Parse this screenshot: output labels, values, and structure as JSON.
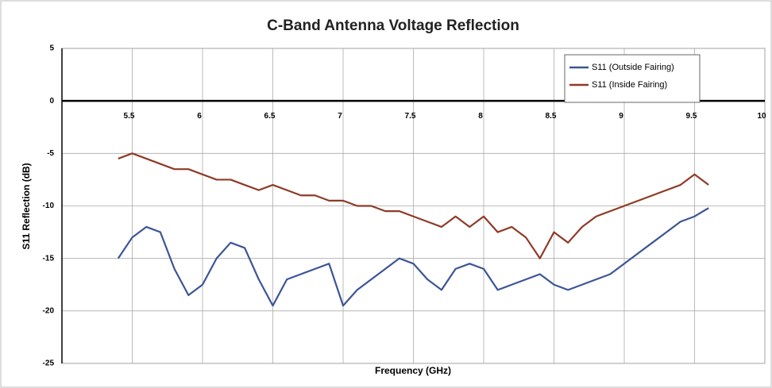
{
  "chart_data": {
    "type": "line",
    "title": "C-Band Antenna Voltage Reflection",
    "x_label": "Frequency (GHz)",
    "y_label": "S11 Reflection (dB)",
    "x": [
      5.4,
      5.5,
      5.6,
      5.7,
      5.8,
      5.9,
      6.0,
      6.1,
      6.2,
      6.3,
      6.4,
      6.5,
      6.6,
      6.7,
      6.8,
      6.9,
      7.0,
      7.1,
      7.2,
      7.3,
      7.4,
      7.5,
      7.6,
      7.7,
      7.8,
      7.9,
      8.0,
      8.1,
      8.2,
      8.3,
      8.4,
      8.5,
      8.6,
      8.7,
      8.8,
      8.9,
      9.0,
      9.1,
      9.2,
      9.3,
      9.4,
      9.5,
      9.6
    ],
    "series": [
      {
        "name": "S11 (Outside Fairing)",
        "color": "#3d5596",
        "values": [
          -15,
          -13,
          -12,
          -12.5,
          -16,
          -18.5,
          -17.5,
          -15,
          -13.5,
          -14,
          -17,
          -19.5,
          -17,
          -16.5,
          -16,
          -15.5,
          -19.5,
          -18,
          -17,
          -16,
          -15,
          -15.5,
          -17,
          -18,
          -16,
          -15.5,
          -16,
          -18,
          -17.5,
          -17,
          -16.5,
          -17.5,
          -18,
          -17.5,
          -17,
          -16.5,
          -15.5,
          -14.5,
          -13.5,
          -12.5,
          -11.5,
          -11,
          -10.2
        ]
      },
      {
        "name": "S11 (Inside Fairing)",
        "color": "#8e3b27",
        "values": [
          -5.5,
          -5,
          -5.5,
          -6,
          -6.5,
          -6.5,
          -7,
          -7.5,
          -7.5,
          -8,
          -8.5,
          -8,
          -8.5,
          -9,
          -9,
          -9.5,
          -9.5,
          -10,
          -10,
          -10.5,
          -10.5,
          -11,
          -11.5,
          -12,
          -11,
          -12,
          -11,
          -12.5,
          -12,
          -13,
          -15,
          -12.5,
          -13.5,
          -12,
          -11,
          -10.5,
          -10,
          -9.5,
          -9,
          -8.5,
          -8,
          -7,
          -8
        ]
      }
    ],
    "xlim": [
      5,
      10
    ],
    "xticks": [
      5.5,
      6,
      6.5,
      7,
      7.5,
      8,
      8.5,
      9,
      9.5,
      10
    ],
    "ylim": [
      -25,
      5
    ],
    "yticks": [
      5,
      0,
      -5,
      -10,
      -15,
      -20,
      -25
    ],
    "grid": true,
    "legend": "top-right"
  }
}
